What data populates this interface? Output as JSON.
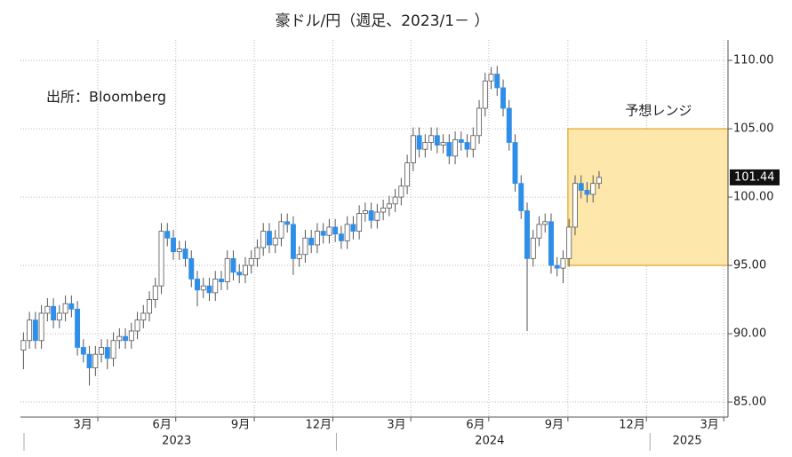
{
  "chart_data": {
    "type": "candlestick",
    "title": "豪ドル/円（週足、2023/1－ ）",
    "source": "出所：Bloomberg",
    "up_color": "#ffffff",
    "down_color": "#2f8ee8",
    "open": [
      88.8,
      89.5,
      91.0,
      89.5,
      91.5,
      92.0,
      91.0,
      91.5,
      92.2,
      91.8,
      89.0,
      88.5,
      87.5,
      88.5,
      89.0,
      88.2,
      89.5,
      89.8,
      89.5,
      90.2,
      91.0,
      91.5,
      92.5,
      93.5,
      97.5,
      97.0,
      96.0,
      96.2,
      95.5,
      94.0,
      93.2,
      93.5,
      93.0,
      94.0,
      93.8,
      95.5,
      94.5,
      94.3,
      95.0,
      95.5,
      96.3,
      97.5,
      96.5,
      97.0,
      98.2,
      98.0,
      95.5,
      95.8,
      97.0,
      96.5,
      97.5,
      97.2,
      97.8,
      97.3,
      96.8,
      98.0,
      97.5,
      98.8,
      99.0,
      98.3,
      98.9,
      99.2,
      99.5,
      100.0,
      100.8,
      102.5,
      104.5,
      103.5,
      104.0,
      104.5,
      103.8,
      104.0,
      103.0,
      104.2,
      104.0,
      103.5,
      104.5,
      106.5,
      108.5,
      109.0,
      108.0,
      106.5,
      104.0,
      101.0,
      99.0,
      95.5,
      97.0,
      98.0,
      98.2,
      95.0,
      94.8,
      95.5,
      97.8,
      101.0,
      100.5,
      100.2,
      101.0
    ],
    "high": [
      90.1,
      91.6,
      91.6,
      92.1,
      92.6,
      92.6,
      92.1,
      92.8,
      92.8,
      92.4,
      89.6,
      89.1,
      89.1,
      89.6,
      89.6,
      90.1,
      90.4,
      90.4,
      90.8,
      91.6,
      92.1,
      93.1,
      94.1,
      98.1,
      98.1,
      97.6,
      96.8,
      96.8,
      96.1,
      94.6,
      94.1,
      94.1,
      94.6,
      94.6,
      96.1,
      96.1,
      95.1,
      95.6,
      96.1,
      96.9,
      98.1,
      98.1,
      97.6,
      98.8,
      98.8,
      98.6,
      96.4,
      97.6,
      97.6,
      98.1,
      98.1,
      98.4,
      98.4,
      97.9,
      98.6,
      98.6,
      99.4,
      99.6,
      99.6,
      99.5,
      99.8,
      100.1,
      100.6,
      101.4,
      103.1,
      105.1,
      105.1,
      104.6,
      105.1,
      105.1,
      104.6,
      104.6,
      104.8,
      104.8,
      104.6,
      105.1,
      107.1,
      109.1,
      109.5,
      109.6,
      108.6,
      107.1,
      104.6,
      101.6,
      99.6,
      97.6,
      98.6,
      98.8,
      98.8,
      95.6,
      96.1,
      98.4,
      101.6,
      101.6,
      101.1,
      101.6,
      101.9
    ],
    "low": [
      87.4,
      88.9,
      88.9,
      88.9,
      90.9,
      90.4,
      90.4,
      90.9,
      91.2,
      88.4,
      87.9,
      86.2,
      86.9,
      87.9,
      87.4,
      87.6,
      88.9,
      88.9,
      88.9,
      89.6,
      90.4,
      90.9,
      91.9,
      92.9,
      96.4,
      95.4,
      95.4,
      94.9,
      93.4,
      92.0,
      92.6,
      92.4,
      92.4,
      93.2,
      93.2,
      93.9,
      93.7,
      93.7,
      94.4,
      94.9,
      95.7,
      95.9,
      95.9,
      96.4,
      97.4,
      94.3,
      94.9,
      95.2,
      95.9,
      95.9,
      96.6,
      96.6,
      96.7,
      96.2,
      96.2,
      96.9,
      96.9,
      98.2,
      97.7,
      97.7,
      98.3,
      98.6,
      98.9,
      99.4,
      100.2,
      101.9,
      102.9,
      102.9,
      103.4,
      103.2,
      103.2,
      102.4,
      102.4,
      103.4,
      102.9,
      102.9,
      103.9,
      105.9,
      107.9,
      107.4,
      105.9,
      103.4,
      100.4,
      98.4,
      90.2,
      94.9,
      96.4,
      97.4,
      94.4,
      94.2,
      93.7,
      94.9,
      97.2,
      99.9,
      99.6,
      99.6,
      100.6
    ],
    "close": [
      89.5,
      91.0,
      89.5,
      91.5,
      92.0,
      91.0,
      91.5,
      92.2,
      91.8,
      89.0,
      88.5,
      87.5,
      88.5,
      89.0,
      88.2,
      89.5,
      89.8,
      89.5,
      90.2,
      91.0,
      91.5,
      92.5,
      93.5,
      97.5,
      97.0,
      96.0,
      96.2,
      95.5,
      94.0,
      93.2,
      93.5,
      93.0,
      94.0,
      93.8,
      95.5,
      94.5,
      94.3,
      95.0,
      95.5,
      96.3,
      97.5,
      96.5,
      97.0,
      98.2,
      98.0,
      95.5,
      95.8,
      97.0,
      96.5,
      97.5,
      97.2,
      97.8,
      97.3,
      96.8,
      98.0,
      97.5,
      98.8,
      99.0,
      98.3,
      98.9,
      99.2,
      99.5,
      100.0,
      100.8,
      102.5,
      104.5,
      103.5,
      104.0,
      104.5,
      103.8,
      104.0,
      103.0,
      104.2,
      104.0,
      103.5,
      104.5,
      106.5,
      108.5,
      109.0,
      108.0,
      106.5,
      104.0,
      101.0,
      99.0,
      95.5,
      97.0,
      98.0,
      98.2,
      95.0,
      94.8,
      95.5,
      97.8,
      101.0,
      100.5,
      100.2,
      101.0,
      101.44
    ],
    "current_price": 101.44,
    "xlim": [
      0,
      118
    ],
    "xticks": [
      {
        "value": 10.4,
        "label": "3月"
      },
      {
        "value": 23.6,
        "label": "6月"
      },
      {
        "value": 36.7,
        "label": "9月"
      },
      {
        "value": 49.7,
        "label": "12月"
      },
      {
        "value": 62.7,
        "label": "3月"
      },
      {
        "value": 75.9,
        "label": "6月"
      },
      {
        "value": 89.0,
        "label": "9月"
      },
      {
        "value": 102.0,
        "label": "12月"
      },
      {
        "value": 114.9,
        "label": "3月"
      }
    ],
    "xgrid": [
      12.9,
      25.9,
      39.0,
      52.1,
      65.1,
      78.1,
      91.3,
      104.4,
      117.3
    ],
    "year_ticks": [
      0,
      52.1,
      104.4
    ],
    "year_labels": [
      "2023",
      "2024",
      "2025"
    ],
    "ylim": [
      83.9,
      111.5
    ],
    "yticks": [
      {
        "value": 85,
        "label": "85.00"
      },
      {
        "value": 90,
        "label": "90.00"
      },
      {
        "value": 95,
        "label": "95.00"
      },
      {
        "value": 100,
        "label": "100.00"
      },
      {
        "value": 105,
        "label": "105.00"
      },
      {
        "value": 110,
        "label": "110.00"
      }
    ],
    "grid": true,
    "forecast": {
      "label": "予想レンジ",
      "low": 95,
      "high": 105,
      "start": 91.3,
      "color": "#fde7ab",
      "border": "#e3a52a"
    }
  }
}
